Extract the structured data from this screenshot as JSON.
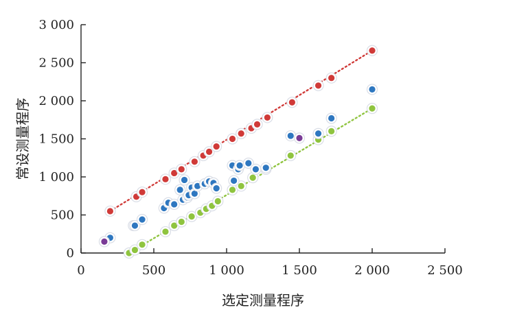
{
  "chart_data": {
    "type": "scatter",
    "title": "",
    "xlabel": "选定测量程序",
    "ylabel": "常设测量程序",
    "xlim": [
      0,
      2500
    ],
    "ylim": [
      0,
      3000
    ],
    "xticks": [
      0,
      500,
      1000,
      1500,
      2000,
      2500
    ],
    "yticks": [
      0,
      500,
      1000,
      1500,
      2000,
      2500,
      3000
    ],
    "xtick_labels": [
      "0",
      "500",
      "1 000",
      "1 500",
      "2 000",
      "2 500"
    ],
    "ytick_labels": [
      "0",
      "500",
      "1 000",
      "1 500",
      "2 000",
      "2 500",
      "3 000"
    ],
    "grid": false,
    "legend": "none",
    "series": [
      {
        "role": "upper-limit",
        "color": "#d03a38",
        "line": "dotted",
        "x": [
          200,
          380,
          420,
          580,
          640,
          690,
          780,
          840,
          880,
          930,
          1040,
          1100,
          1170,
          1210,
          1280,
          1450,
          1630,
          1720,
          2000
        ],
        "y": [
          550,
          740,
          800,
          970,
          1050,
          1100,
          1200,
          1280,
          1330,
          1400,
          1500,
          1570,
          1640,
          1690,
          1780,
          1980,
          2200,
          2300,
          2660
        ]
      },
      {
        "role": "lower-limit",
        "color": "#8fc43f",
        "line": "dotted",
        "x": [
          330,
          370,
          420,
          580,
          640,
          690,
          760,
          820,
          860,
          900,
          940,
          1040,
          1100,
          1180,
          1270,
          1440,
          1630,
          1720,
          2000
        ],
        "y": [
          0,
          40,
          110,
          280,
          360,
          410,
          480,
          530,
          580,
          620,
          680,
          830,
          880,
          990,
          1100,
          1280,
          1490,
          1600,
          1900
        ]
      },
      {
        "role": "measurements",
        "color": "#2e77c0",
        "line": "none",
        "x": [
          200,
          360,
          370,
          420,
          570,
          600,
          640,
          680,
          700,
          710,
          730,
          740,
          760,
          780,
          800,
          850,
          880,
          910,
          930,
          1040,
          1050,
          1080,
          1090,
          1150,
          1200,
          1270,
          1440,
          1630,
          1720,
          2000
        ],
        "y": [
          200,
          360,
          360,
          440,
          590,
          660,
          640,
          830,
          700,
          960,
          730,
          760,
          860,
          780,
          880,
          910,
          940,
          920,
          850,
          1150,
          950,
          1100,
          1150,
          1180,
          1100,
          1120,
          1540,
          1570,
          1770,
          2150
        ]
      },
      {
        "role": "outliers",
        "color": "#7a3b96",
        "line": "none",
        "x": [
          160,
          1500
        ],
        "y": [
          150,
          1510
        ]
      }
    ]
  }
}
